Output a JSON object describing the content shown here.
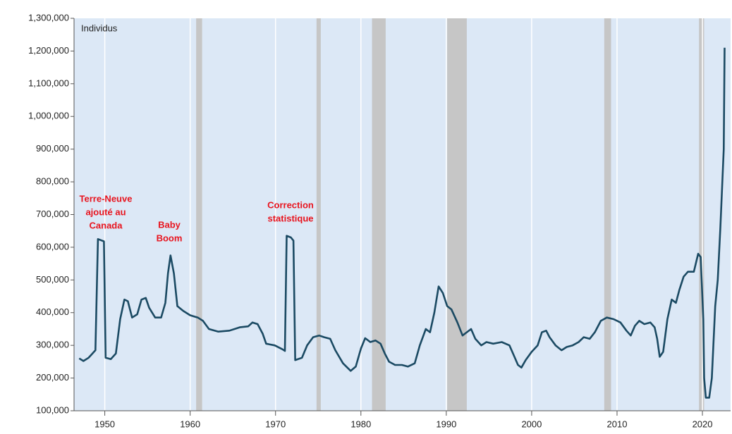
{
  "chart_data": {
    "type": "line",
    "y_label": "Individus",
    "color": "#1b4a63",
    "band_color": "#c6c6c6",
    "background": "#dce8f6",
    "grid": true,
    "xlim": [
      1946.4,
      2023.3
    ],
    "xticks": [
      1950,
      1960,
      1970,
      1980,
      1990,
      2000,
      2010,
      2020
    ],
    "ylim": [
      100000,
      1300000
    ],
    "yticks": [
      {
        "value": 100000,
        "label": "100,000"
      },
      {
        "value": 200000,
        "label": "200,000"
      },
      {
        "value": 300000,
        "label": "300,000"
      },
      {
        "value": 400000,
        "label": "400,000"
      },
      {
        "value": 500000,
        "label": "500,000"
      },
      {
        "value": 600000,
        "label": "600,000"
      },
      {
        "value": 700000,
        "label": "700,000"
      },
      {
        "value": 800000,
        "label": "800,000"
      },
      {
        "value": 900000,
        "label": "900,000"
      },
      {
        "value": 1000000,
        "label": "1,000,000"
      },
      {
        "value": 1100000,
        "label": "1,100,000"
      },
      {
        "value": 1200000,
        "label": "1,200,000"
      },
      {
        "value": 1300000,
        "label": "1,300,000"
      }
    ],
    "shaded_ranges": [
      [
        1960.7,
        1961.4
      ],
      [
        1974.8,
        1975.3
      ],
      [
        1981.3,
        1982.9
      ],
      [
        1990.1,
        1992.4
      ],
      [
        2008.5,
        2009.3
      ],
      [
        2019.6,
        2020.2
      ]
    ],
    "annotations": [
      [
        "Terre-Neuve",
        "ajouté au",
        "Canada"
      ],
      [
        "Baby",
        "Boom"
      ],
      [
        "Correction",
        "statistique"
      ]
    ],
    "x": [
      1947.0,
      1947.5,
      1948.1,
      1948.9,
      1949.2,
      1949.9,
      1950.1,
      1950.7,
      1951.3,
      1951.8,
      1952.3,
      1952.7,
      1953.2,
      1953.8,
      1954.3,
      1954.8,
      1955.2,
      1955.9,
      1956.6,
      1957.1,
      1957.4,
      1957.7,
      1958.1,
      1958.5,
      1959.2,
      1960.0,
      1960.9,
      1961.5,
      1962.2,
      1963.3,
      1964.6,
      1965.8,
      1966.8,
      1967.3,
      1967.9,
      1968.5,
      1968.9,
      1969.9,
      1970.8,
      1971.1,
      1971.3,
      1971.8,
      1972.1,
      1972.3,
      1973.1,
      1973.7,
      1974.4,
      1975.1,
      1975.7,
      1976.4,
      1977.0,
      1977.9,
      1978.8,
      1979.4,
      1980.0,
      1980.5,
      1981.1,
      1981.7,
      1982.3,
      1982.8,
      1983.3,
      1984.0,
      1984.8,
      1985.5,
      1986.3,
      1986.9,
      1987.6,
      1988.1,
      1988.6,
      1989.1,
      1989.6,
      1990.1,
      1990.6,
      1991.3,
      1991.9,
      1992.4,
      1992.9,
      1993.4,
      1994.1,
      1994.7,
      1995.5,
      1996.5,
      1997.4,
      1997.9,
      1998.4,
      1998.8,
      1999.3,
      2000.0,
      2000.7,
      2001.2,
      2001.7,
      2002.1,
      2002.8,
      2003.5,
      2004.1,
      2004.8,
      2005.5,
      2006.1,
      2006.8,
      2007.4,
      2008.1,
      2008.8,
      2009.6,
      2010.4,
      2011.1,
      2011.6,
      2012.1,
      2012.6,
      2013.2,
      2013.9,
      2014.4,
      2014.7,
      2015.0,
      2015.4,
      2015.9,
      2016.4,
      2016.9,
      2017.3,
      2017.8,
      2018.3,
      2019.0,
      2019.5,
      2019.8,
      2020.1,
      2020.2,
      2020.4,
      2020.8,
      2021.1,
      2021.5,
      2021.8,
      2022.1,
      2022.5,
      2022.6
    ],
    "values": [
      260000,
      252000,
      262000,
      285000,
      625000,
      618000,
      262000,
      258000,
      275000,
      380000,
      440000,
      435000,
      385000,
      395000,
      440000,
      445000,
      415000,
      385000,
      385000,
      430000,
      520000,
      575000,
      520000,
      420000,
      405000,
      392000,
      385000,
      375000,
      350000,
      342000,
      345000,
      355000,
      358000,
      370000,
      365000,
      335000,
      305000,
      300000,
      288000,
      283000,
      635000,
      630000,
      620000,
      255000,
      262000,
      300000,
      325000,
      330000,
      325000,
      320000,
      285000,
      245000,
      222000,
      235000,
      290000,
      322000,
      310000,
      315000,
      305000,
      275000,
      250000,
      240000,
      240000,
      235000,
      245000,
      300000,
      350000,
      340000,
      400000,
      480000,
      460000,
      420000,
      410000,
      370000,
      330000,
      340000,
      350000,
      320000,
      300000,
      310000,
      305000,
      310000,
      300000,
      270000,
      240000,
      232000,
      255000,
      280000,
      300000,
      340000,
      345000,
      325000,
      300000,
      285000,
      295000,
      300000,
      310000,
      325000,
      320000,
      340000,
      375000,
      385000,
      380000,
      370000,
      345000,
      330000,
      360000,
      375000,
      365000,
      370000,
      355000,
      320000,
      265000,
      280000,
      380000,
      440000,
      430000,
      470000,
      510000,
      525000,
      525000,
      580000,
      570000,
      380000,
      200000,
      140000,
      140000,
      200000,
      420000,
      500000,
      660000,
      900000,
      1210000
    ]
  }
}
